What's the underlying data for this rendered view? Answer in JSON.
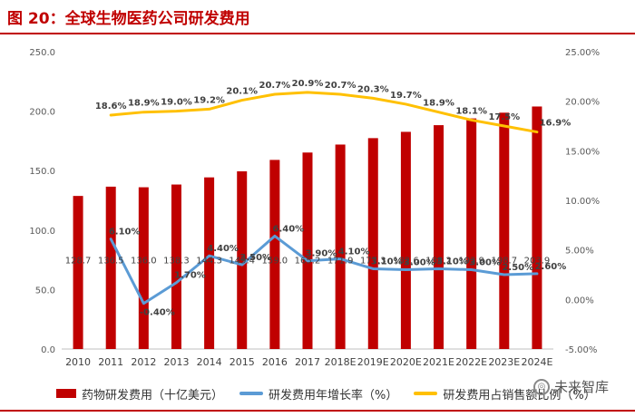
{
  "figure": {
    "title": "图 20：全球生物医药公司研发费用"
  },
  "legend": {
    "items": [
      {
        "label": "药物研发费用（十亿美元）",
        "color": "#c00000",
        "kind": "bar"
      },
      {
        "label": "研发费用年增长率（%）",
        "color": "#5b9bd5",
        "kind": "line"
      },
      {
        "label": "研发费用占销售额比例（%）",
        "color": "#ffc000",
        "kind": "line"
      }
    ]
  },
  "watermark": {
    "text": "未来智库",
    "icon": "wechat-icon"
  },
  "chart_data": {
    "type": "bar",
    "categories": [
      "2010",
      "2011",
      "2012",
      "2013",
      "2014",
      "2015",
      "2016",
      "2017",
      "2018E",
      "2019E",
      "2020E",
      "2021E",
      "2022E",
      "2023E",
      "2024E"
    ],
    "left_axis": {
      "ylim": [
        0,
        250
      ],
      "ticks": [
        "0.0",
        "50.0",
        "100.0",
        "150.0",
        "200.0",
        "250.0"
      ]
    },
    "right_axis": {
      "ylim": [
        -5,
        25
      ],
      "ticks": [
        "-5.00%",
        "0.00%",
        "5.00%",
        "10.00%",
        "15.00%",
        "20.00%",
        "25.00%"
      ]
    },
    "grid": false,
    "legend_position": "bottom",
    "series": [
      {
        "name": "药物研发费用（十亿美元）",
        "type": "bar",
        "axis": "left",
        "color": "#c00000",
        "values": [
          128.7,
          136.5,
          136.0,
          138.3,
          144.3,
          149.4,
          159.0,
          165.2,
          171.9,
          177.3,
          182.6,
          188.2,
          193.9,
          198.7,
          203.9
        ],
        "labels": [
          "128.7",
          "136.5",
          "136.0",
          "138.3",
          "144.3",
          "149.4",
          "159.0",
          "165.2",
          "171.9",
          "177.3",
          "182.6",
          "188.2",
          "193.9",
          "198.7",
          "203.9"
        ]
      },
      {
        "name": "研发费用年增长率（%）",
        "type": "line",
        "axis": "right",
        "color": "#5b9bd5",
        "x": [
          "2011",
          "2012",
          "2013",
          "2014",
          "2015",
          "2016",
          "2017",
          "2018E",
          "2019E",
          "2020E",
          "2021E",
          "2022E",
          "2023E",
          "2024E"
        ],
        "values": [
          6.1,
          -0.4,
          1.7,
          4.4,
          3.5,
          6.4,
          3.9,
          4.1,
          3.1,
          3.0,
          3.1,
          3.0,
          2.5,
          2.6
        ],
        "labels": [
          "6.10%",
          "-0.40%",
          "1.70%",
          "4.40%",
          "3.50%",
          "6.40%",
          "3.90%",
          "4.10%",
          "3.10%",
          "3.00%",
          "3.10%",
          "3.00%",
          "2.50%",
          "2.60%"
        ]
      },
      {
        "name": "研发费用占销售额比例（%）",
        "type": "line",
        "axis": "right",
        "color": "#ffc000",
        "x": [
          "2011",
          "2012",
          "2013",
          "2014",
          "2015",
          "2016",
          "2017",
          "2018E",
          "2019E",
          "2020E",
          "2021E",
          "2022E",
          "2023E",
          "2024E"
        ],
        "values": [
          18.6,
          18.9,
          19.0,
          19.2,
          20.1,
          20.7,
          20.9,
          20.7,
          20.3,
          19.7,
          18.9,
          18.1,
          17.5,
          16.9
        ],
        "labels": [
          "18.6%",
          "18.9%",
          "19.0%",
          "19.2%",
          "20.1%",
          "20.7%",
          "20.9%",
          "20.7%",
          "20.3%",
          "19.7%",
          "18.9%",
          "18.1%",
          "17.5%",
          "16.9%"
        ]
      }
    ]
  }
}
